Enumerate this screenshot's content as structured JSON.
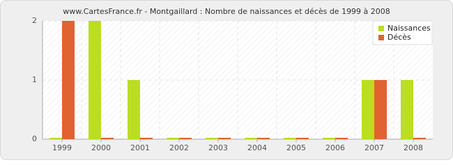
{
  "chart_data": {
    "type": "bar",
    "title": "www.CartesFrance.fr - Montgaillard : Nombre de naissances et décès de 1999 à 2008",
    "categories": [
      "1999",
      "2000",
      "2001",
      "2002",
      "2003",
      "2004",
      "2005",
      "2006",
      "2007",
      "2008"
    ],
    "series": [
      {
        "name": "Naissances",
        "color": "#bbdd22",
        "values": [
          0,
          2,
          1,
          0,
          0,
          0,
          0,
          0,
          1,
          1
        ]
      },
      {
        "name": "Décès",
        "color": "#e06331",
        "values": [
          2,
          0,
          0,
          0,
          0,
          0,
          0,
          0,
          1,
          0
        ]
      }
    ],
    "ylim": [
      0,
      2
    ],
    "yticks": [
      0,
      1,
      2
    ],
    "grid": true,
    "legend": "top-right"
  }
}
